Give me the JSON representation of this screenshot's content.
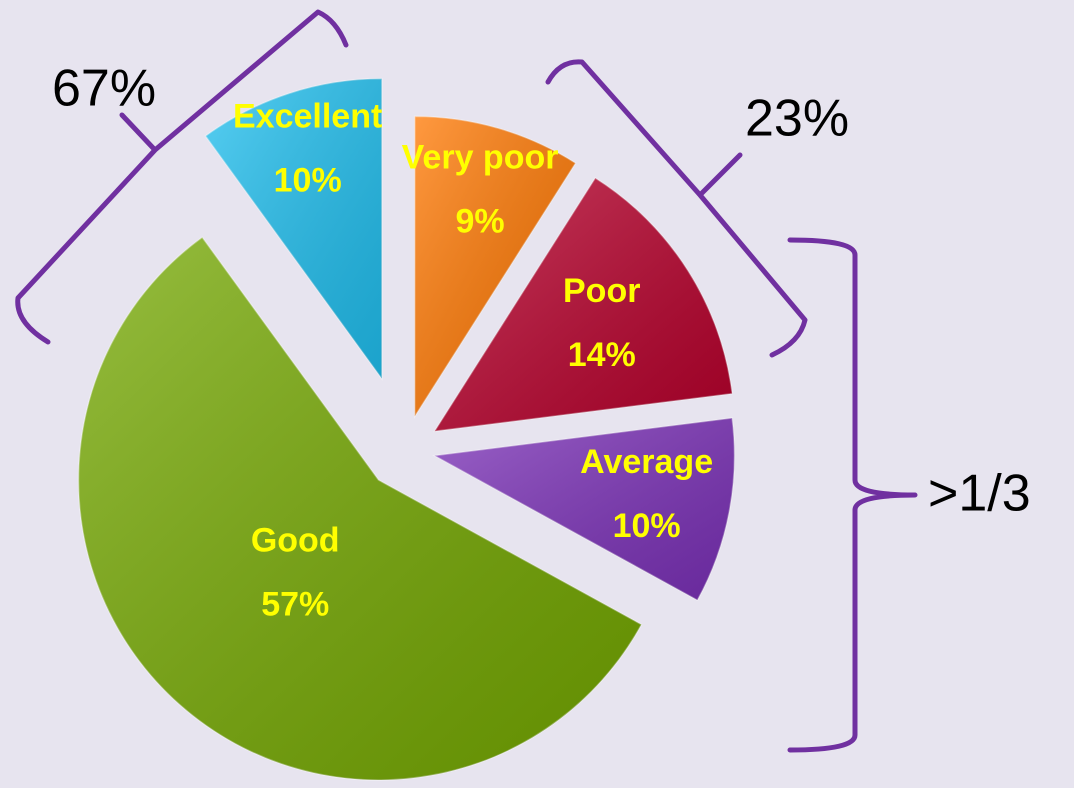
{
  "chart_data": {
    "type": "pie",
    "categories": [
      "Very poor",
      "Poor",
      "Average",
      "Good",
      "Excellent"
    ],
    "values": [
      9,
      14,
      10,
      57,
      10
    ],
    "value_labels": [
      "9%",
      "14%",
      "10%",
      "57%",
      "10%"
    ],
    "colors": [
      "#ff7700",
      "#b8002c",
      "#7b30b8",
      "#74a800",
      "#20c0f0"
    ],
    "annotations": [
      "67%",
      "23%",
      ">1/3"
    ]
  }
}
